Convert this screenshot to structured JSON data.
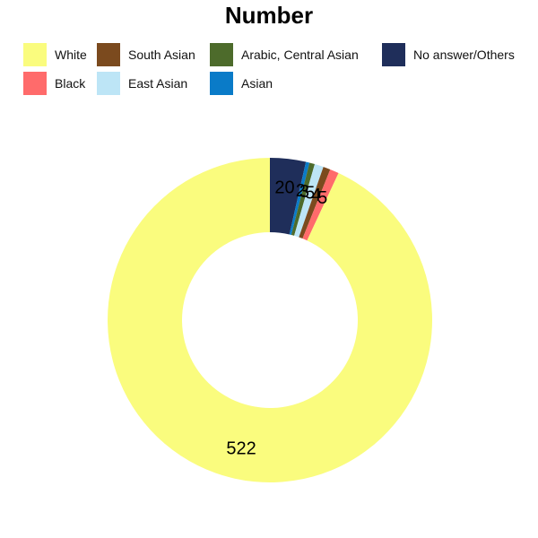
{
  "chart_data": {
    "type": "pie",
    "title": "Number",
    "legend_position": "top",
    "categories": [
      "White",
      "Black",
      "South Asian",
      "East Asian",
      "Arabic, Central Asian",
      "Asian",
      "No answer/Others"
    ],
    "values": [
      522,
      5,
      4,
      5,
      3,
      2,
      20
    ],
    "colors": [
      "#FAFC7E",
      "#FF6B6B",
      "#7B4A1E",
      "#BDE5F6",
      "#4D6B2B",
      "#0A7BC8",
      "#1F2E5A"
    ],
    "data_labels": [
      "522",
      "5",
      "4",
      "5",
      "3",
      "2",
      "20"
    ]
  }
}
